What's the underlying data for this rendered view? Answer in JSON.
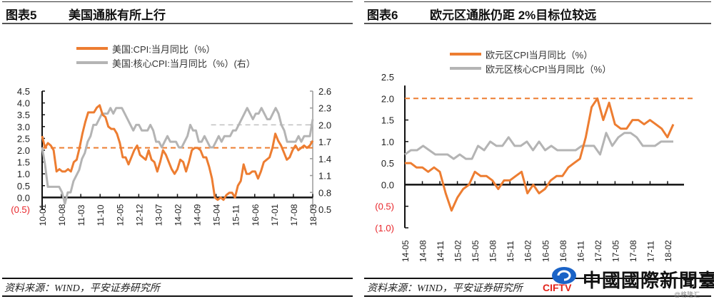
{
  "panels": [
    {
      "figure_label": "图表5",
      "title": "美国通胀有所上行",
      "legend": [
        "美国:CPI:当月同比（%）",
        "美国:核心CPI:当月同比（%）(右）"
      ],
      "source": "资料来源：WIND，平安证券研究所"
    },
    {
      "figure_label": "图表6",
      "title": "欧元区通胀仍距 2%目标位较远",
      "legend": [
        "欧元区CPI当月同比（%）",
        "欧元区核心CPI当月同比（%）"
      ],
      "source": "资料来源：WIND，平安证券研究所"
    }
  ],
  "watermark": {
    "brand": "中國國際新聞臺",
    "logo": "CIFTV",
    "handle": "@格隆汇"
  },
  "colors": {
    "orange": "#ed7d31",
    "gray": "#b4b4b4",
    "negative": "#e8262b",
    "axis": "#111111"
  },
  "chart_data": [
    {
      "type": "line",
      "title": "美国通胀有所上行",
      "x_ticks": [
        "10-01",
        "10-08",
        "11-03",
        "11-10",
        "12-05",
        "12-12",
        "13-07",
        "14-02",
        "14-09",
        "15-04",
        "15-11",
        "16-06",
        "17-01",
        "17-08",
        "18-03"
      ],
      "ylim_left": [
        -0.5,
        4.5
      ],
      "y_ticks_left": [
        "(0.5)",
        "0.0",
        "0.5",
        "1.0",
        "1.5",
        "2.0",
        "2.5",
        "3.0",
        "3.5",
        "4.0",
        "4.5"
      ],
      "ylim_right": [
        0.5,
        2.6
      ],
      "y_ticks_right": [
        "0.5",
        "0.8",
        "1.1",
        "1.4",
        "1.7",
        "2.0",
        "2.3",
        "2.6"
      ],
      "reference_lines": [
        {
          "axis": "left",
          "value": 2.1,
          "color": "orange",
          "style": "dashed",
          "from_x": "10-01"
        },
        {
          "axis": "right",
          "value": 2.0,
          "color": "gray",
          "style": "dashed",
          "from_x": "14-09"
        }
      ],
      "series": [
        {
          "name": "美国:CPI:当月同比（%）",
          "axis": "left",
          "color": "orange",
          "values": [
            2.6,
            2.1,
            2.3,
            2.2,
            2.0,
            1.1,
            1.2,
            1.1,
            1.1,
            1.2,
            1.1,
            1.5,
            1.6,
            2.1,
            2.7,
            3.2,
            3.6,
            3.6,
            3.6,
            3.8,
            3.9,
            3.5,
            3.4,
            3.0,
            2.9,
            2.9,
            2.7,
            2.3,
            1.7,
            1.7,
            1.4,
            1.7,
            2.0,
            2.2,
            1.8,
            1.7,
            1.6,
            2.0,
            1.6,
            1.5,
            1.1,
            1.5,
            2.0,
            1.8,
            1.5,
            1.2,
            1.0,
            1.2,
            1.6,
            1.5,
            1.1,
            1.5,
            2.0,
            2.1,
            2.1,
            2.0,
            1.7,
            1.7,
            1.3,
            0.8,
            0.0,
            -0.1,
            0.0,
            -0.1,
            0.1,
            0.2,
            0.2,
            0.0,
            0.5,
            0.7,
            1.4,
            1.0,
            1.0,
            1.1,
            1.1,
            0.8,
            1.1,
            1.5,
            1.6,
            1.7,
            2.1,
            2.7,
            2.4,
            2.2,
            1.9,
            1.6,
            1.7,
            2.0,
            2.2,
            2.0,
            2.1,
            2.2,
            2.1,
            2.2,
            2.4
          ]
        },
        {
          "name": "美国:核心CPI:当月同比（%）(右）",
          "axis": "right",
          "color": "gray",
          "values": [
            1.6,
            1.3,
            0.9,
            0.9,
            0.9,
            0.9,
            0.9,
            0.8,
            0.6,
            0.8,
            0.8,
            1.0,
            1.1,
            1.2,
            1.4,
            1.5,
            1.7,
            1.8,
            2.0,
            2.0,
            2.1,
            2.2,
            2.2,
            2.2,
            2.3,
            2.2,
            2.3,
            2.3,
            2.3,
            2.2,
            2.1,
            2.0,
            1.9,
            2.0,
            2.0,
            1.9,
            1.9,
            1.9,
            2.0,
            1.9,
            1.7,
            1.7,
            1.6,
            1.7,
            1.8,
            1.7,
            1.7,
            1.7,
            1.6,
            1.6,
            1.7,
            1.8,
            2.0,
            1.9,
            1.9,
            1.7,
            1.7,
            1.8,
            1.7,
            1.6,
            1.6,
            1.7,
            1.8,
            1.7,
            1.8,
            1.8,
            1.8,
            1.9,
            1.9,
            2.0,
            2.1,
            2.2,
            2.3,
            2.2,
            2.1,
            2.2,
            2.2,
            2.3,
            2.2,
            2.1,
            2.1,
            2.2,
            2.3,
            2.2,
            2.0,
            1.9,
            1.7,
            1.7,
            1.7,
            1.7,
            1.8,
            1.7,
            1.8,
            1.8,
            1.8,
            2.1
          ]
        }
      ]
    },
    {
      "type": "line",
      "title": "欧元区通胀仍距 2%目标位较远",
      "x_ticks": [
        "14-05",
        "14-08",
        "14-11",
        "15-02",
        "15-05",
        "15-08",
        "15-11",
        "16-02",
        "16-05",
        "16-08",
        "16-11",
        "17-02",
        "17-05",
        "17-08",
        "17-11",
        "18-02"
      ],
      "ylim": [
        -1.0,
        2.5
      ],
      "y_ticks": [
        "(1.0)",
        "(0.5)",
        "0.0",
        "0.5",
        "1.0",
        "1.5",
        "2.0",
        "2.5"
      ],
      "reference_lines": [
        {
          "value": 2.0,
          "color": "orange",
          "style": "dashed"
        }
      ],
      "series": [
        {
          "name": "欧元区CPI当月同比（%）",
          "color": "orange",
          "values": [
            0.5,
            0.5,
            0.4,
            0.4,
            0.3,
            0.4,
            0.3,
            -0.2,
            -0.6,
            -0.3,
            -0.1,
            0.0,
            0.3,
            0.2,
            0.2,
            0.1,
            -0.1,
            0.1,
            0.1,
            0.2,
            0.3,
            -0.2,
            0.0,
            -0.2,
            -0.1,
            0.1,
            0.2,
            0.2,
            0.4,
            0.5,
            0.6,
            1.1,
            1.8,
            2.0,
            1.5,
            1.9,
            1.4,
            1.3,
            1.3,
            1.5,
            1.5,
            1.4,
            1.5,
            1.4,
            1.3,
            1.1,
            1.4
          ]
        },
        {
          "name": "欧元区核心CPI当月同比（%）",
          "color": "gray",
          "values": [
            0.7,
            0.8,
            0.8,
            0.9,
            0.8,
            0.7,
            0.7,
            0.7,
            0.6,
            0.7,
            0.6,
            0.6,
            0.9,
            0.8,
            1.0,
            0.9,
            0.9,
            1.1,
            0.9,
            0.9,
            1.0,
            0.8,
            1.0,
            0.8,
            0.9,
            0.8,
            0.8,
            0.8,
            0.8,
            0.9,
            0.9,
            0.9,
            0.7,
            1.2,
            0.9,
            1.1,
            1.2,
            1.2,
            1.1,
            0.9,
            0.9,
            0.9,
            1.0,
            1.0,
            1.0
          ]
        }
      ]
    }
  ]
}
